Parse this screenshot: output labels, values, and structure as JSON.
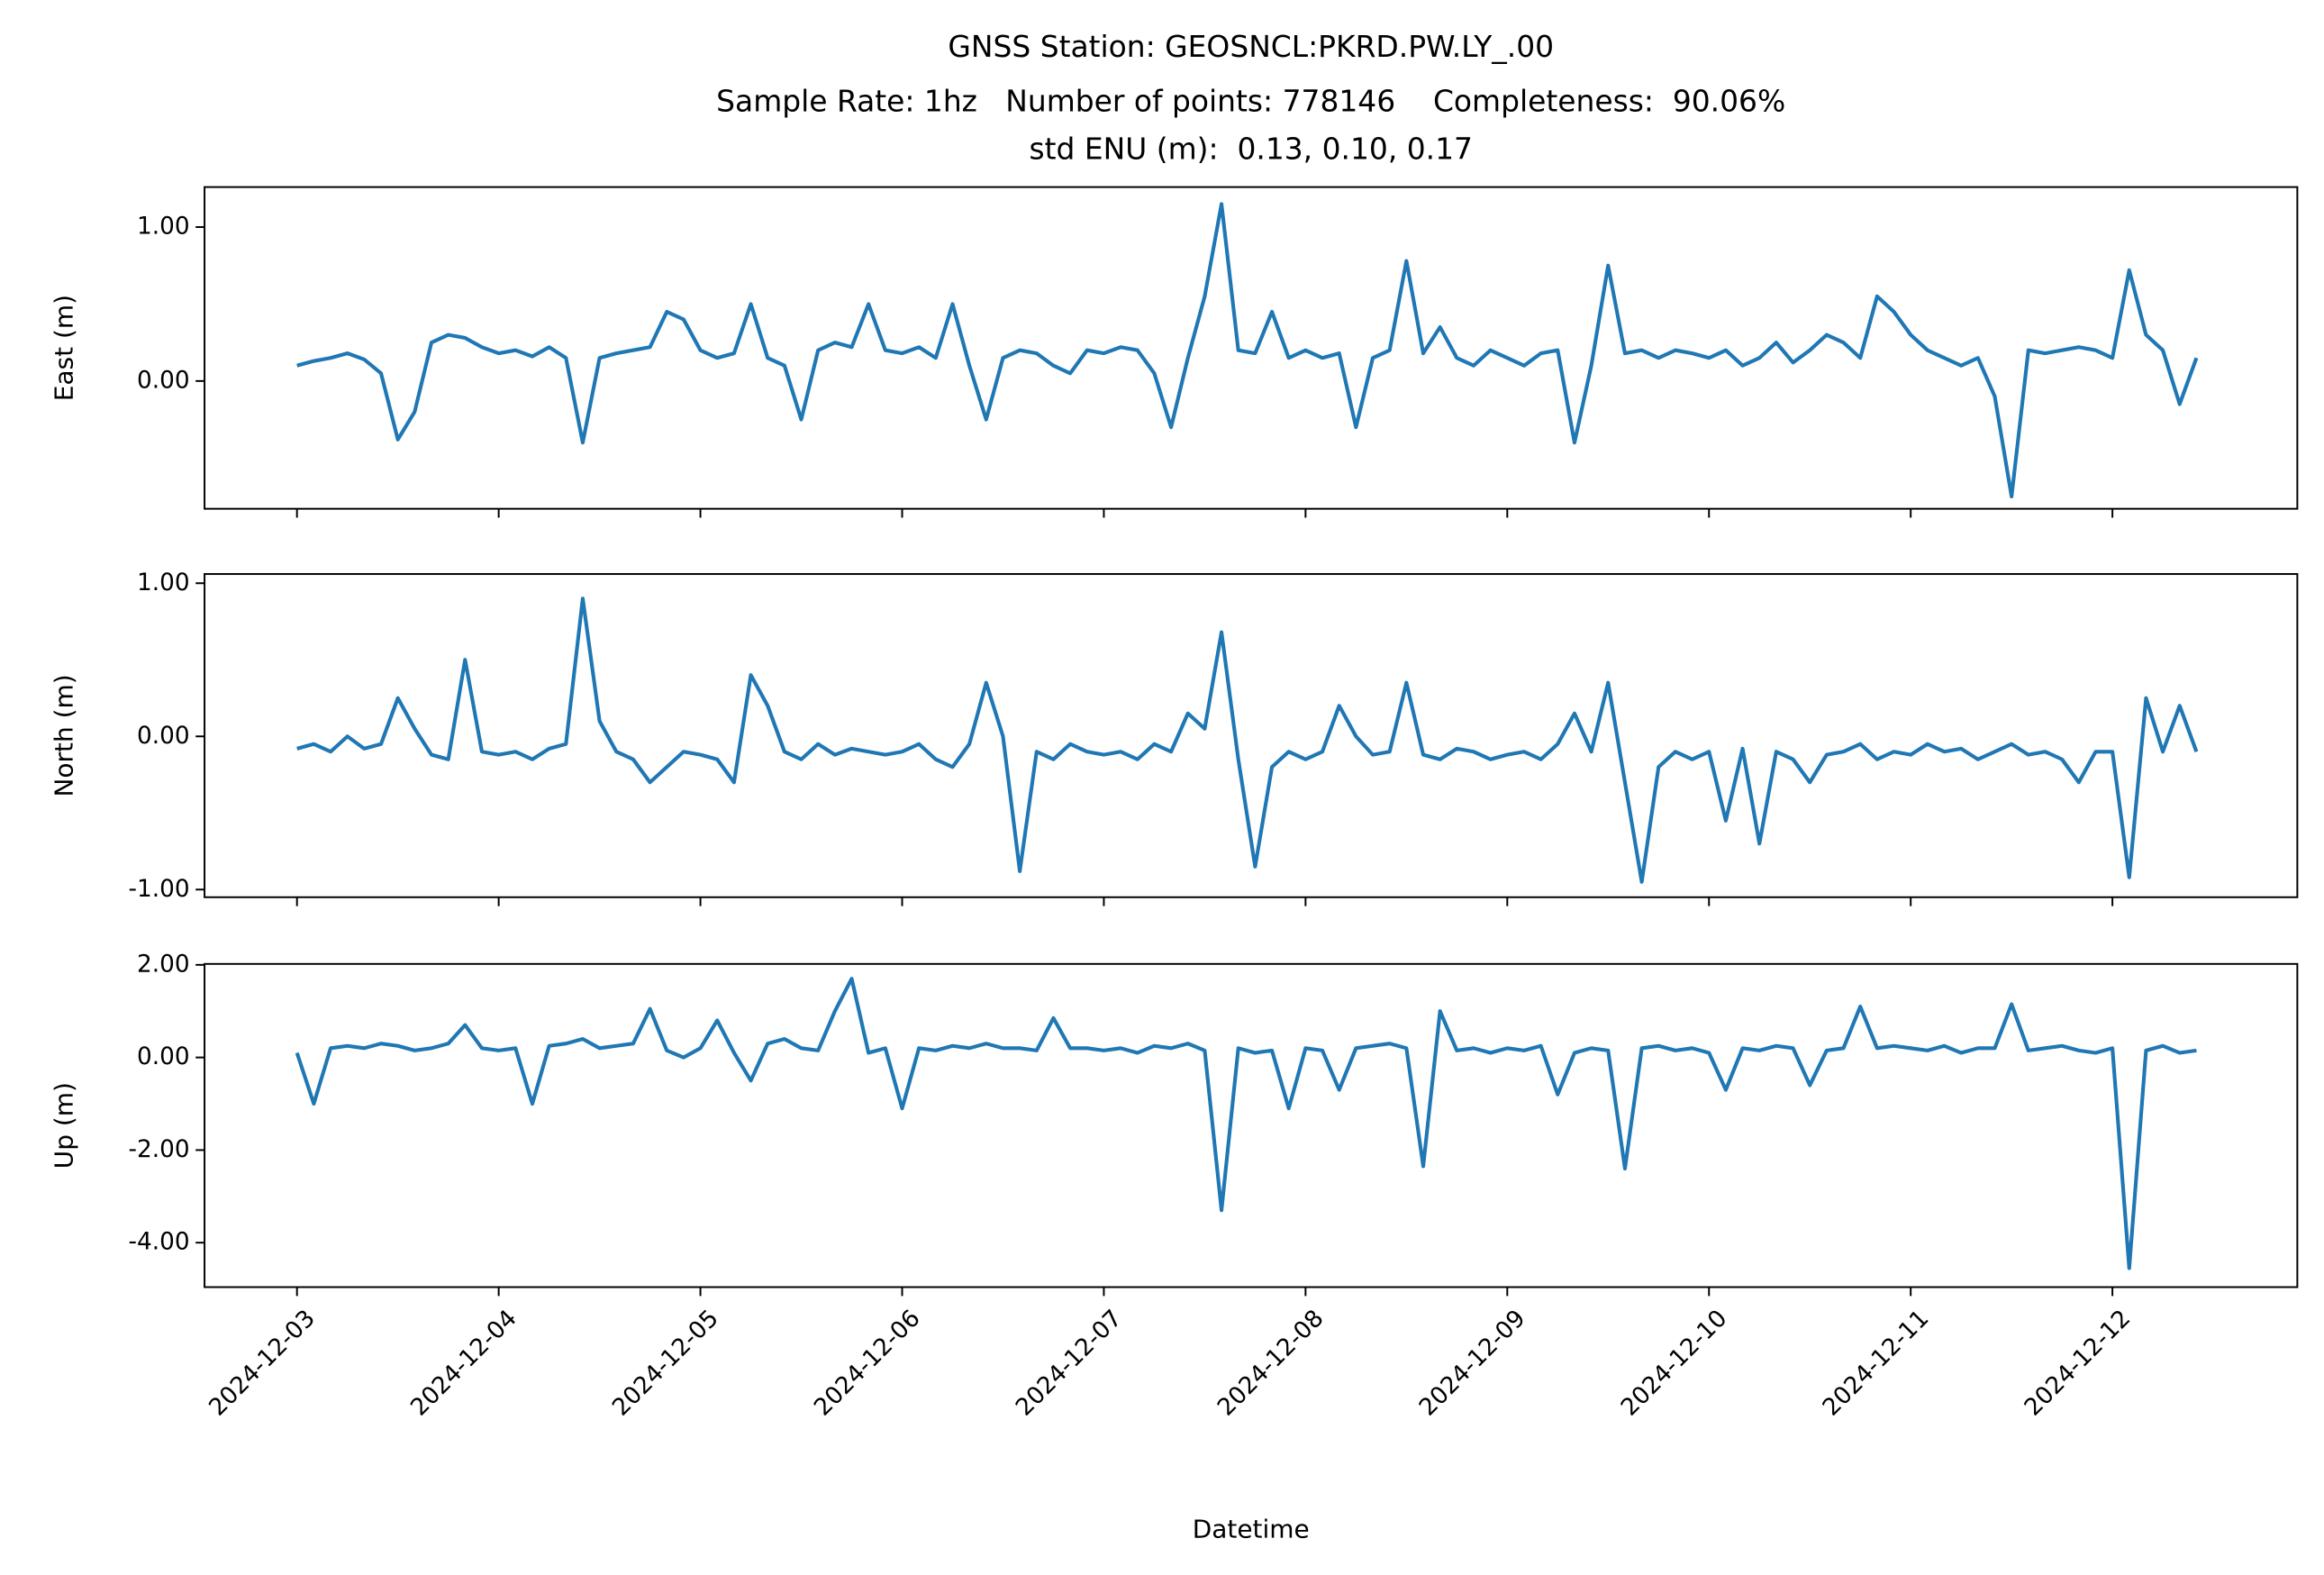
{
  "chart_data": {
    "type": "line",
    "title": [
      "GNSS Station: GEOSNCL:PKRD.PW.LY_.00",
      "Sample Rate: 1hz   Number of points: 778146    Completeness:  90.06%",
      "std ENU (m):  0.13, 0.10, 0.17"
    ],
    "xlabel": "Datetime",
    "xlim": [
      "2024-12-02 13:00",
      "2024-12-12 22:00"
    ],
    "xticks": [
      "2024-12-03",
      "2024-12-04",
      "2024-12-05",
      "2024-12-06",
      "2024-12-07",
      "2024-12-08",
      "2024-12-09",
      "2024-12-10",
      "2024-12-11",
      "2024-12-12"
    ],
    "x": [
      "2024-12-03 00:00",
      "2024-12-03 02:00",
      "2024-12-03 04:00",
      "2024-12-03 06:00",
      "2024-12-03 08:00",
      "2024-12-03 10:00",
      "2024-12-03 12:00",
      "2024-12-03 14:00",
      "2024-12-03 16:00",
      "2024-12-03 18:00",
      "2024-12-03 20:00",
      "2024-12-03 22:00",
      "2024-12-04 00:00",
      "2024-12-04 02:00",
      "2024-12-04 04:00",
      "2024-12-04 06:00",
      "2024-12-04 08:00",
      "2024-12-04 10:00",
      "2024-12-04 12:00",
      "2024-12-04 14:00",
      "2024-12-04 16:00",
      "2024-12-04 18:00",
      "2024-12-04 20:00",
      "2024-12-04 22:00",
      "2024-12-05 00:00",
      "2024-12-05 02:00",
      "2024-12-05 04:00",
      "2024-12-05 06:00",
      "2024-12-05 08:00",
      "2024-12-05 10:00",
      "2024-12-05 12:00",
      "2024-12-05 14:00",
      "2024-12-05 16:00",
      "2024-12-05 18:00",
      "2024-12-05 20:00",
      "2024-12-05 22:00",
      "2024-12-06 00:00",
      "2024-12-06 02:00",
      "2024-12-06 04:00",
      "2024-12-06 06:00",
      "2024-12-06 08:00",
      "2024-12-06 10:00",
      "2024-12-06 12:00",
      "2024-12-06 14:00",
      "2024-12-06 16:00",
      "2024-12-06 18:00",
      "2024-12-06 20:00",
      "2024-12-06 22:00",
      "2024-12-07 00:00",
      "2024-12-07 02:00",
      "2024-12-07 04:00",
      "2024-12-07 06:00",
      "2024-12-07 08:00",
      "2024-12-07 10:00",
      "2024-12-07 12:00",
      "2024-12-07 14:00",
      "2024-12-07 16:00",
      "2024-12-07 18:00",
      "2024-12-07 20:00",
      "2024-12-07 22:00",
      "2024-12-08 00:00",
      "2024-12-08 02:00",
      "2024-12-08 04:00",
      "2024-12-08 06:00",
      "2024-12-08 08:00",
      "2024-12-08 10:00",
      "2024-12-08 12:00",
      "2024-12-08 14:00",
      "2024-12-08 16:00",
      "2024-12-08 18:00",
      "2024-12-08 20:00",
      "2024-12-08 22:00",
      "2024-12-09 00:00",
      "2024-12-09 02:00",
      "2024-12-09 04:00",
      "2024-12-09 06:00",
      "2024-12-09 08:00",
      "2024-12-09 10:00",
      "2024-12-09 12:00",
      "2024-12-09 14:00",
      "2024-12-09 16:00",
      "2024-12-09 18:00",
      "2024-12-09 20:00",
      "2024-12-09 22:00",
      "2024-12-10 00:00",
      "2024-12-10 02:00",
      "2024-12-10 04:00",
      "2024-12-10 06:00",
      "2024-12-10 08:00",
      "2024-12-10 10:00",
      "2024-12-10 12:00",
      "2024-12-10 14:00",
      "2024-12-10 16:00",
      "2024-12-10 18:00",
      "2024-12-10 20:00",
      "2024-12-10 22:00",
      "2024-12-11 00:00",
      "2024-12-11 02:00",
      "2024-12-11 04:00",
      "2024-12-11 06:00",
      "2024-12-11 08:00",
      "2024-12-11 10:00",
      "2024-12-11 12:00",
      "2024-12-11 14:00",
      "2024-12-11 16:00",
      "2024-12-11 18:00",
      "2024-12-11 20:00",
      "2024-12-11 22:00",
      "2024-12-12 00:00",
      "2024-12-12 02:00",
      "2024-12-12 04:00",
      "2024-12-12 06:00",
      "2024-12-12 08:00",
      "2024-12-12 10:00"
    ],
    "panels": [
      {
        "ylabel": "East (m)",
        "color": "#1f77b4",
        "ylim": [
          -0.83,
          1.26
        ],
        "yticks": [
          {
            "value": 0,
            "label": "0.00"
          },
          {
            "value": 1,
            "label": "1.00"
          }
        ],
        "values": [
          0.1,
          0.13,
          0.15,
          0.18,
          0.14,
          0.05,
          -0.38,
          -0.2,
          0.25,
          0.3,
          0.28,
          0.22,
          0.18,
          0.2,
          0.16,
          0.22,
          0.15,
          -0.4,
          0.15,
          0.18,
          0.2,
          0.22,
          0.45,
          0.4,
          0.2,
          0.15,
          0.18,
          0.5,
          0.15,
          0.1,
          -0.25,
          0.2,
          0.25,
          0.22,
          0.5,
          0.2,
          0.18,
          0.22,
          0.15,
          0.5,
          0.1,
          -0.25,
          0.15,
          0.2,
          0.18,
          0.1,
          0.05,
          0.2,
          0.18,
          0.22,
          0.2,
          0.05,
          -0.3,
          0.15,
          0.55,
          1.15,
          0.2,
          0.18,
          0.45,
          0.15,
          0.2,
          0.15,
          0.18,
          -0.3,
          0.15,
          0.2,
          0.78,
          0.18,
          0.35,
          0.15,
          0.1,
          0.2,
          0.15,
          0.1,
          0.18,
          0.2,
          -0.4,
          0.1,
          0.75,
          0.18,
          0.2,
          0.15,
          0.2,
          0.18,
          0.15,
          0.2,
          0.1,
          0.15,
          0.25,
          0.12,
          0.2,
          0.3,
          0.25,
          0.15,
          0.55,
          0.45,
          0.3,
          0.2,
          0.15,
          0.1,
          0.15,
          -0.1,
          -0.75,
          0.2,
          0.18,
          0.2,
          0.22,
          0.2,
          0.15,
          0.72,
          0.3,
          0.2,
          -0.15,
          0.15
        ]
      },
      {
        "ylabel": "North (m)",
        "color": "#1f77b4",
        "ylim": [
          -1.05,
          1.06
        ],
        "yticks": [
          {
            "value": -1,
            "label": "-1.00"
          },
          {
            "value": 0,
            "label": "0.00"
          },
          {
            "value": 1,
            "label": "1.00"
          }
        ],
        "values": [
          -0.08,
          -0.05,
          -0.1,
          0.0,
          -0.08,
          -0.05,
          0.25,
          0.05,
          -0.12,
          -0.15,
          0.5,
          -0.1,
          -0.12,
          -0.1,
          -0.15,
          -0.08,
          -0.05,
          0.9,
          0.1,
          -0.1,
          -0.15,
          -0.3,
          -0.2,
          -0.1,
          -0.12,
          -0.15,
          -0.3,
          0.4,
          0.2,
          -0.1,
          -0.15,
          -0.05,
          -0.12,
          -0.08,
          -0.1,
          -0.12,
          -0.1,
          -0.05,
          -0.15,
          -0.2,
          -0.05,
          0.35,
          0.0,
          -0.88,
          -0.1,
          -0.15,
          -0.05,
          -0.1,
          -0.12,
          -0.1,
          -0.15,
          -0.05,
          -0.1,
          0.15,
          0.05,
          0.68,
          -0.15,
          -0.85,
          -0.2,
          -0.1,
          -0.15,
          -0.1,
          0.2,
          0.0,
          -0.12,
          -0.1,
          0.35,
          -0.12,
          -0.15,
          -0.08,
          -0.1,
          -0.15,
          -0.12,
          -0.1,
          -0.15,
          -0.05,
          0.15,
          -0.1,
          0.35,
          -0.3,
          -0.95,
          -0.2,
          -0.1,
          -0.15,
          -0.1,
          -0.55,
          -0.08,
          -0.7,
          -0.1,
          -0.15,
          -0.3,
          -0.12,
          -0.1,
          -0.05,
          -0.15,
          -0.1,
          -0.12,
          -0.05,
          -0.1,
          -0.08,
          -0.15,
          -0.1,
          -0.05,
          -0.12,
          -0.1,
          -0.15,
          -0.3,
          -0.1,
          -0.1,
          -0.92,
          0.25,
          -0.1,
          0.2,
          -0.1
        ]
      },
      {
        "ylabel": "Up (m)",
        "color": "#1f77b4",
        "ylim": [
          -4.96,
          2.02
        ],
        "yticks": [
          {
            "value": -4,
            "label": "-4.00"
          },
          {
            "value": -2,
            "label": "-2.00"
          },
          {
            "value": 0,
            "label": "0.00"
          },
          {
            "value": 2,
            "label": "2.00"
          }
        ],
        "values": [
          0.1,
          -1.0,
          0.2,
          0.25,
          0.2,
          0.3,
          0.25,
          0.15,
          0.2,
          0.3,
          0.7,
          0.2,
          0.15,
          0.2,
          -1.0,
          0.25,
          0.3,
          0.4,
          0.2,
          0.25,
          0.3,
          1.05,
          0.15,
          0.0,
          0.2,
          0.8,
          0.1,
          -0.5,
          0.3,
          0.4,
          0.2,
          0.15,
          1.0,
          1.7,
          0.1,
          0.2,
          -1.1,
          0.2,
          0.15,
          0.25,
          0.2,
          0.3,
          0.2,
          0.2,
          0.15,
          0.85,
          0.2,
          0.2,
          0.15,
          0.2,
          0.1,
          0.25,
          0.2,
          0.3,
          0.15,
          -3.3,
          0.2,
          0.1,
          0.15,
          -1.1,
          0.2,
          0.15,
          -0.7,
          0.2,
          0.25,
          0.3,
          0.2,
          -2.35,
          1.0,
          0.15,
          0.2,
          0.1,
          0.2,
          0.15,
          0.25,
          -0.8,
          0.1,
          0.2,
          0.15,
          -2.4,
          0.2,
          0.25,
          0.15,
          0.2,
          0.1,
          -0.7,
          0.2,
          0.15,
          0.25,
          0.2,
          -0.6,
          0.15,
          0.2,
          1.1,
          0.2,
          0.25,
          0.2,
          0.15,
          0.25,
          0.1,
          0.2,
          0.2,
          1.15,
          0.15,
          0.2,
          0.25,
          0.15,
          0.1,
          0.2,
          -4.55,
          0.15,
          0.25,
          0.1,
          0.15
        ]
      }
    ]
  }
}
